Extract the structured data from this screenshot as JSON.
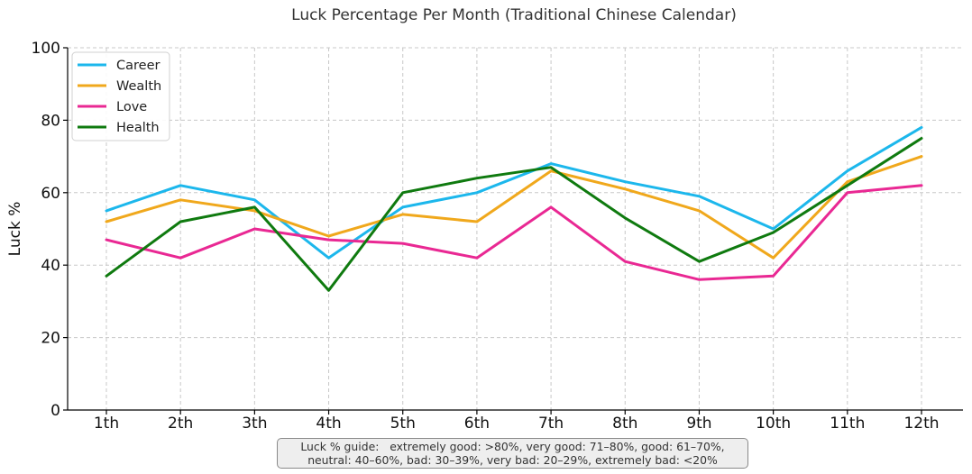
{
  "chart_data": {
    "type": "line",
    "title": "Luck Percentage Per Month (Traditional Chinese Calendar)",
    "xlabel": "",
    "ylabel": "Luck %",
    "ylim": [
      0,
      100
    ],
    "yticks": [
      0,
      20,
      40,
      60,
      80,
      100
    ],
    "grid": true,
    "legend_position": "top-left",
    "categories": [
      "1th",
      "2th",
      "3th",
      "4th",
      "5th",
      "6th",
      "7th",
      "8th",
      "9th",
      "10th",
      "11th",
      "12th"
    ],
    "series": [
      {
        "name": "Career",
        "color": "#1cb7ec",
        "values": [
          55,
          62,
          58,
          42,
          56,
          60,
          68,
          63,
          59,
          50,
          66,
          78
        ]
      },
      {
        "name": "Wealth",
        "color": "#f0a81c",
        "values": [
          52,
          58,
          55,
          48,
          54,
          52,
          66,
          61,
          55,
          42,
          63,
          70
        ]
      },
      {
        "name": "Love",
        "color": "#e92893",
        "values": [
          47,
          42,
          50,
          47,
          46,
          42,
          56,
          41,
          36,
          37,
          60,
          62
        ]
      },
      {
        "name": "Health",
        "color": "#0f7a0f",
        "values": [
          37,
          52,
          56,
          33,
          60,
          64,
          67,
          53,
          41,
          49,
          62,
          75
        ]
      }
    ]
  },
  "guide": {
    "line1": "Luck % guide:   extremely good: >80%, very good: 71–80%, good: 61–70%,",
    "line2": "neutral: 40–60%, bad: 30–39%, very bad: 20–29%, extremely bad: <20%"
  }
}
